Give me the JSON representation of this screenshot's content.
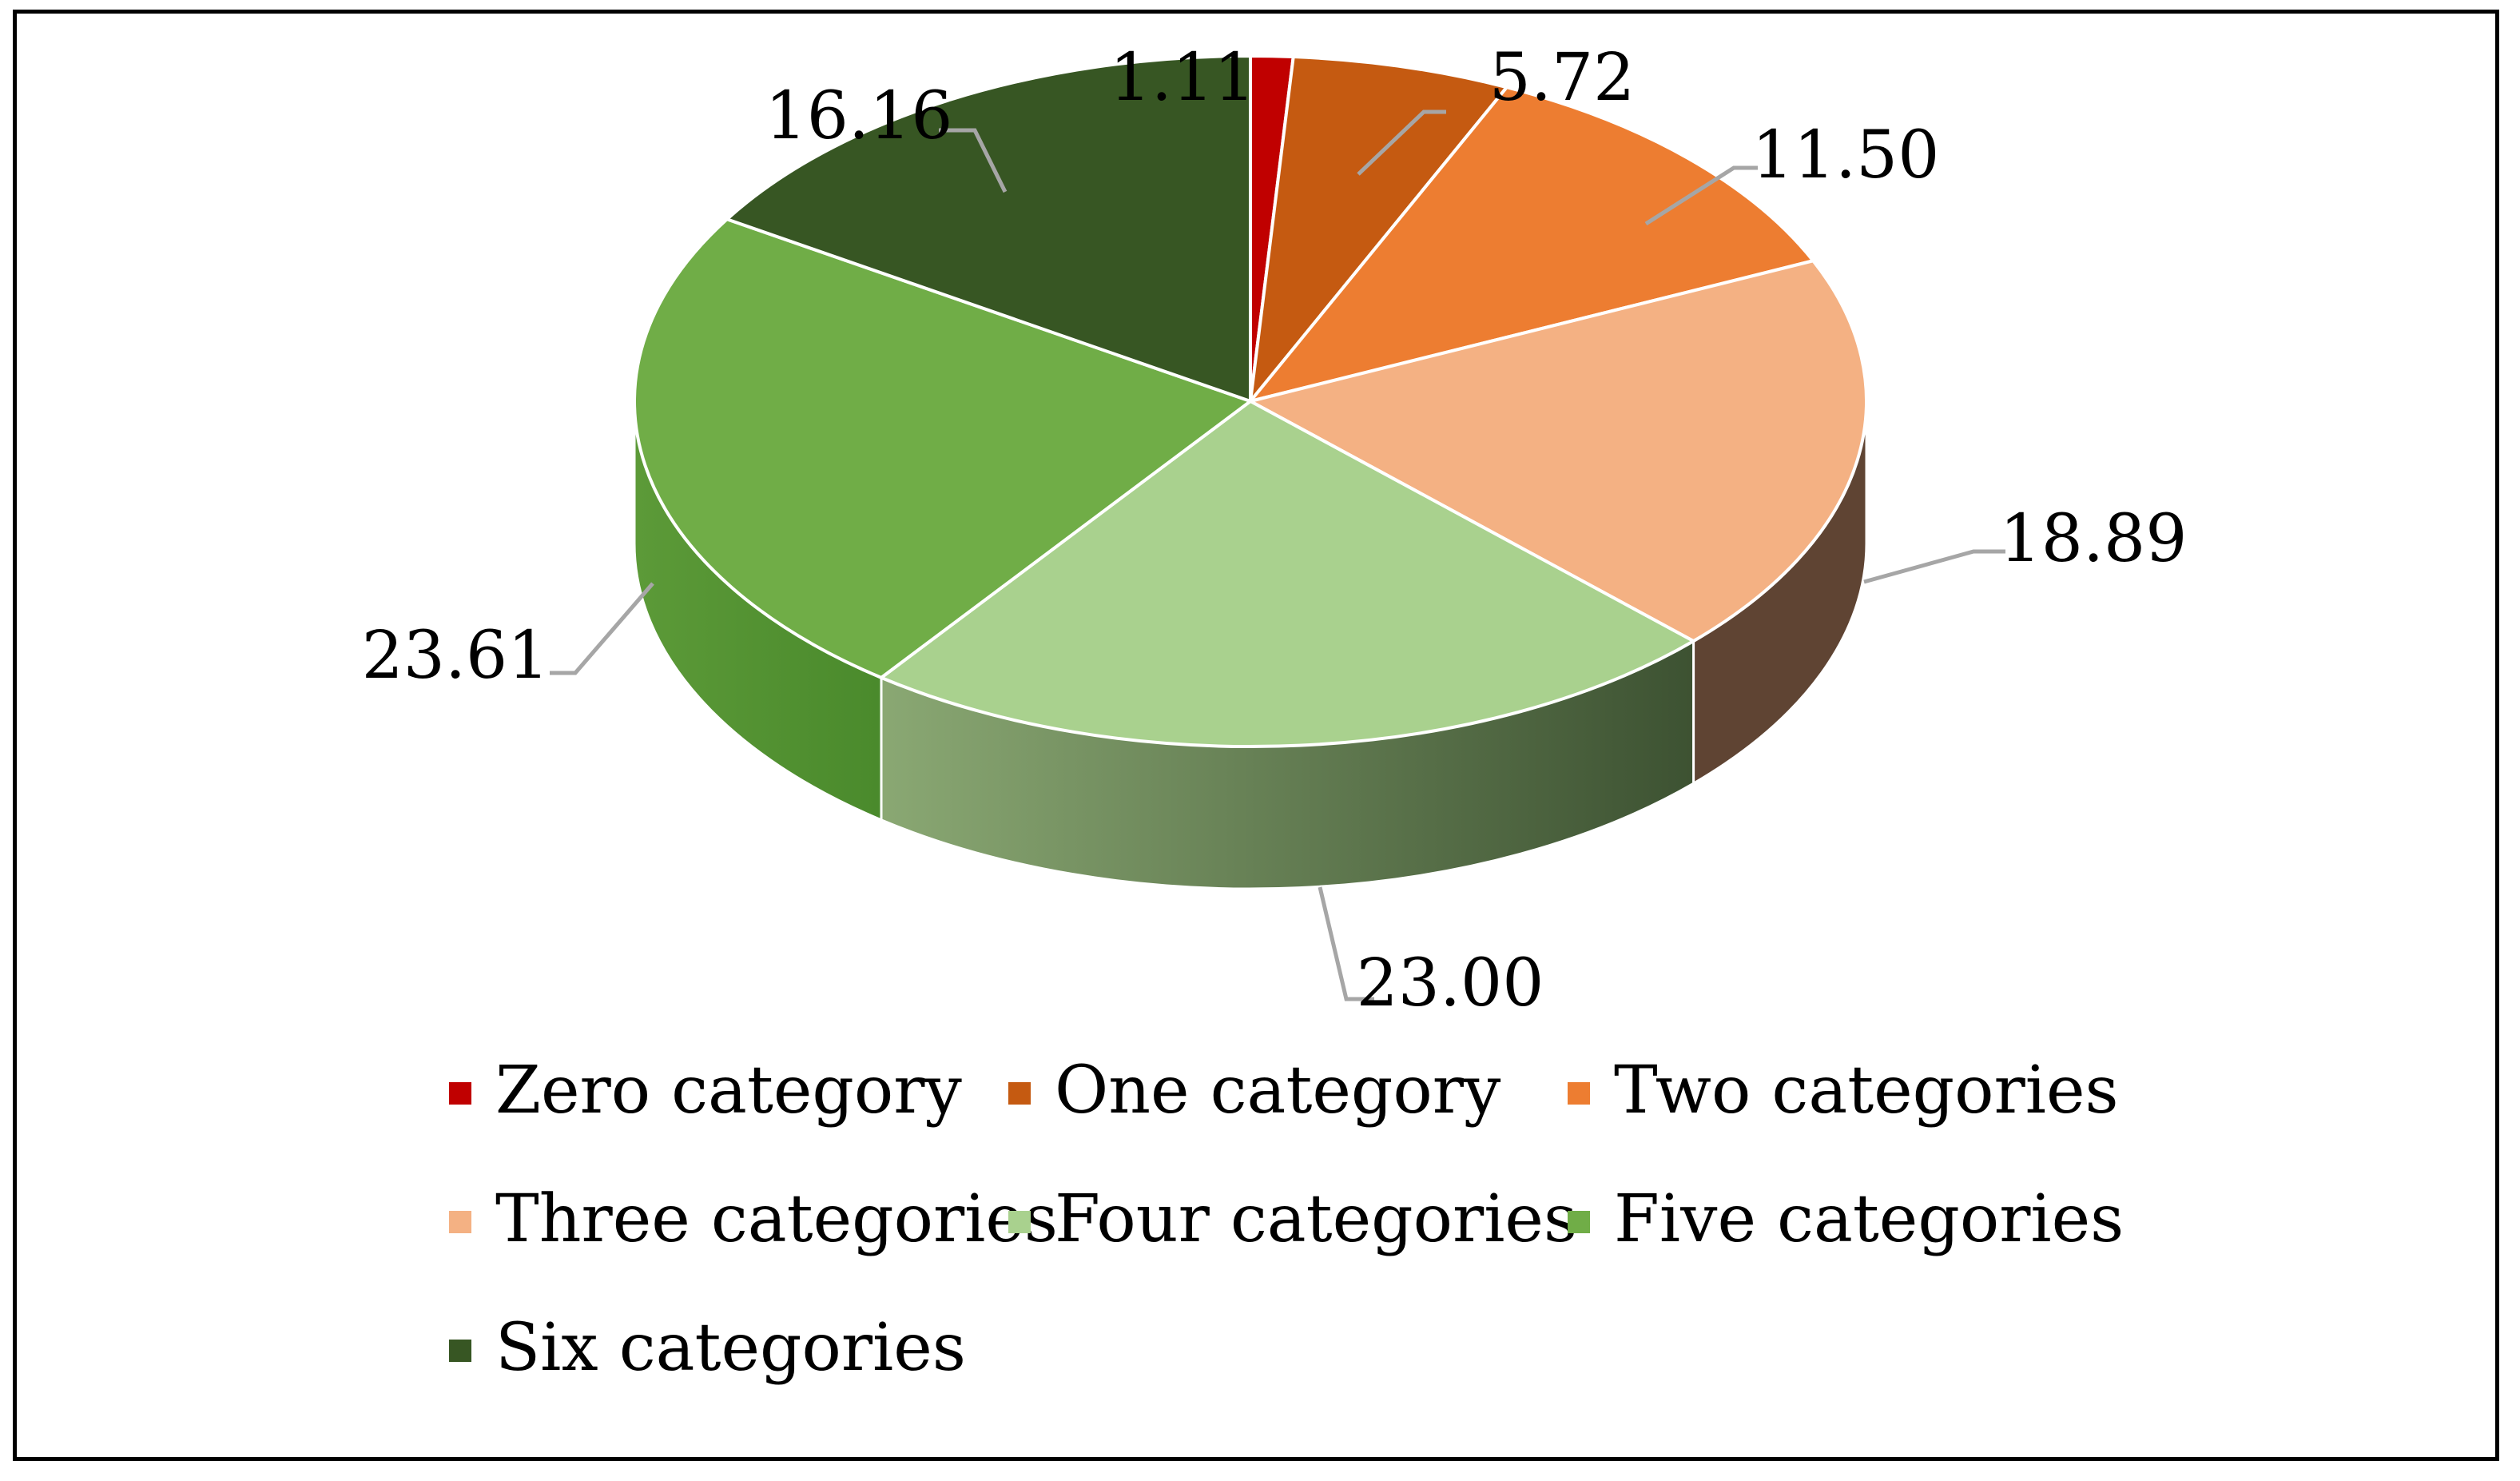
{
  "chart_data": {
    "type": "pie",
    "style": "3d",
    "categories": [
      "Zero category",
      "One category",
      "Two categories",
      "Three categories",
      "Four categories",
      "Five categories",
      "Six categories"
    ],
    "values": [
      1.11,
      5.72,
      11.5,
      18.89,
      23.0,
      23.61,
      16.16
    ],
    "labels": [
      "1.11",
      "5.72",
      "11.50",
      "18.89",
      "23.00",
      "23.61",
      "16.16"
    ],
    "colors": [
      "#c00000",
      "#c55a11",
      "#ed7d31",
      "#f4b183",
      "#a9d18e",
      "#70ad47",
      "#375623"
    ],
    "side_colors": [
      "#8a0000",
      "#8f3f0b",
      "#b55d22",
      "#5f4433",
      "#6e8a57",
      "#5a9a3a",
      "#263d18"
    ],
    "legend_position": "bottom",
    "start_angle_deg": 0,
    "direction": "clockwise"
  }
}
